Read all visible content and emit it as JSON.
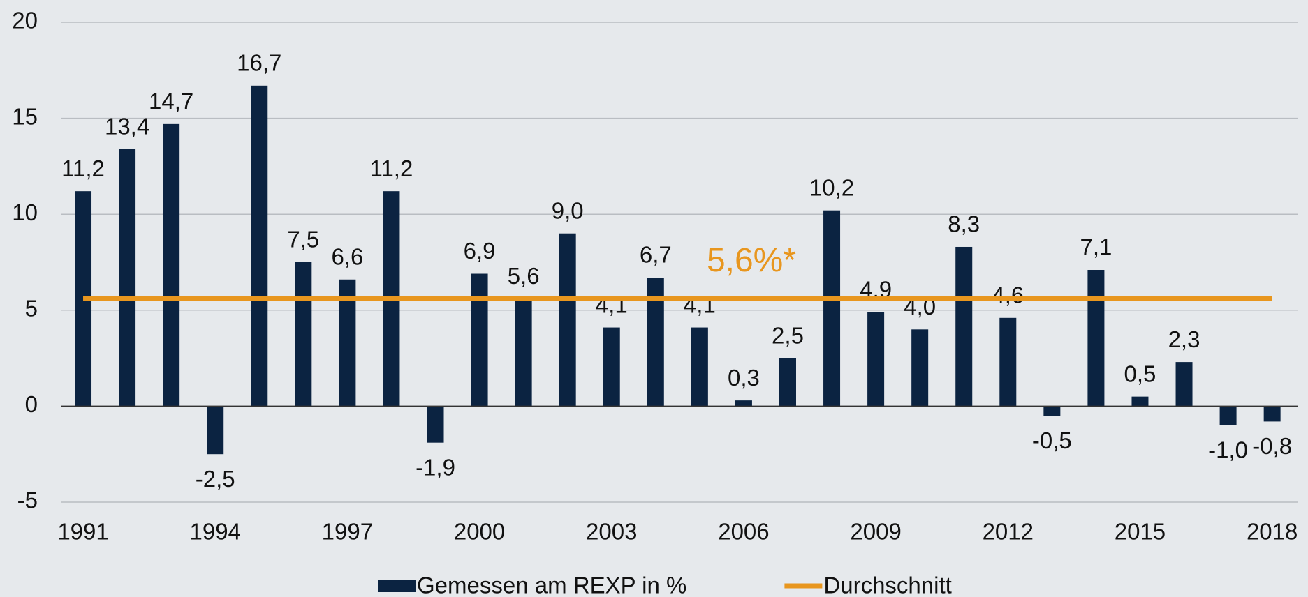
{
  "chart_data": {
    "type": "bar",
    "categories": [
      "1991",
      null,
      null,
      "1994",
      null,
      null,
      "1997",
      null,
      null,
      "2000",
      null,
      null,
      "2003",
      null,
      null,
      "2006",
      null,
      null,
      "2009",
      null,
      null,
      "2012",
      null,
      null,
      "2015",
      null,
      null,
      "2018"
    ],
    "series": [
      {
        "name": "Gemessen am REXP in %",
        "color": "#0b2341",
        "values": [
          11.2,
          13.4,
          14.7,
          -2.5,
          16.7,
          7.5,
          6.6,
          11.2,
          -1.9,
          6.9,
          5.6,
          9.0,
          4.1,
          6.7,
          4.1,
          0.3,
          2.5,
          10.2,
          4.9,
          4.0,
          8.3,
          4.6,
          -0.5,
          7.1,
          0.5,
          2.3,
          -1.0,
          -0.8
        ],
        "value_labels": [
          "11,2",
          "13,4",
          "14,7",
          "-2,5",
          "16,7",
          "7,5",
          "6,6",
          "11,2",
          "-1,9",
          "6,9",
          "5,6",
          "9,0",
          "4,1",
          "6,7",
          "4,1",
          "0,3",
          "2,5",
          "10,2",
          "4,9",
          "4,0",
          "8,3",
          "4,6",
          "-0,5",
          "7,1",
          "0,5",
          "2,3",
          "-1,0",
          "-0,8"
        ]
      },
      {
        "name": "Durchschnitt",
        "color": "#e8961e",
        "type": "line",
        "values": [
          5.6,
          5.6,
          5.6,
          5.6,
          5.6,
          5.6,
          5.6,
          5.6,
          5.6,
          5.6,
          5.6,
          5.6,
          5.6,
          5.6,
          5.6,
          5.6,
          5.6,
          5.6,
          5.6,
          5.6,
          5.6,
          5.6,
          5.6,
          5.6,
          5.6,
          5.6,
          5.6,
          5.6
        ]
      }
    ],
    "annotation": "5,6%*",
    "ylim": [
      -5,
      20
    ],
    "yticks": [
      -5,
      0,
      5,
      10,
      15,
      20
    ],
    "grid": true,
    "legend": "bottom"
  }
}
